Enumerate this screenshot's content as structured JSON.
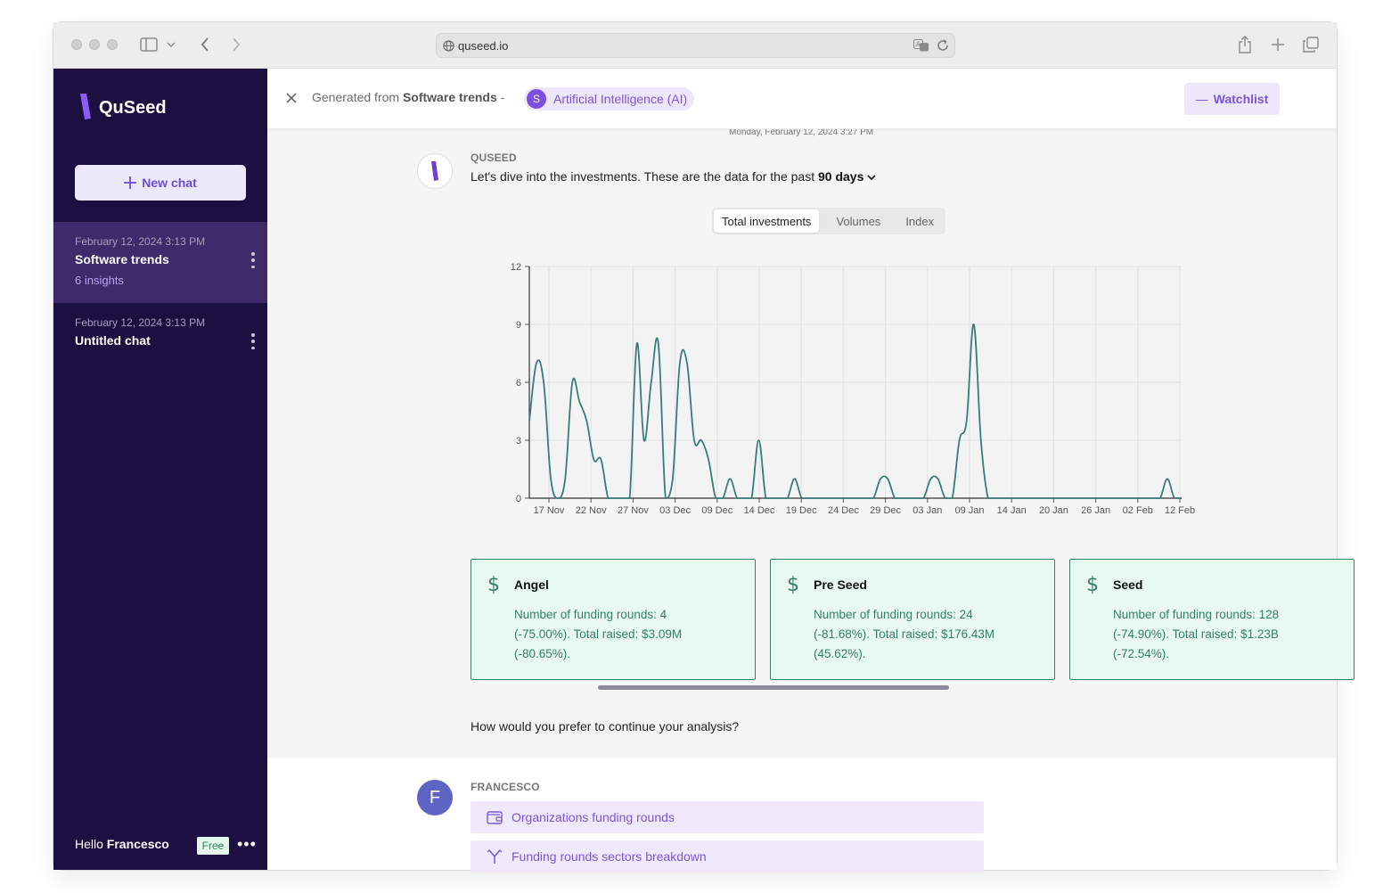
{
  "browser": {
    "url": "quseed.io"
  },
  "sidebar": {
    "brand": "QuSeed",
    "new_chat": "New chat",
    "chats": [
      {
        "date": "February 12, 2024 3:13 PM",
        "title": "Software trends",
        "subtitle": "6 insights",
        "active": true
      },
      {
        "date": "February 12, 2024 3:13 PM",
        "title": "Untitled chat",
        "subtitle": "",
        "active": false
      }
    ],
    "footer": {
      "greeting": "Hello",
      "user": "Francesco",
      "plan": "Free"
    }
  },
  "header": {
    "generated_from_label": "Generated from",
    "source": "Software trends",
    "separator": "-",
    "topic_initial": "S",
    "topic": "Artificial Intelligence (AI)",
    "watchlist_label": "Watchlist"
  },
  "conversation": {
    "timestamp": "Monday, February 12, 2024 3:27 PM",
    "bot_name": "QUSEED",
    "intro_text": "Let's dive into the investments. These are the data for the past",
    "period": "90 days",
    "tabs": [
      "Total investments",
      "Volumes",
      "Index"
    ],
    "active_tab": "Total investments",
    "cards": [
      {
        "title": "Angel",
        "body": "Number of funding rounds: 4 (-75.00%). Total raised: $3.09M (-80.65%)."
      },
      {
        "title": "Pre Seed",
        "body": "Number of funding rounds: 24 (-81.68%). Total raised: $176.43M (45.62%)."
      },
      {
        "title": "Seed",
        "body": "Number of funding rounds: 128 (-74.90%). Total raised: $1.23B (-72.54%)."
      }
    ],
    "question": "How would you prefer to continue your analysis?",
    "user_name": "FRANCESCO",
    "user_initial": "F",
    "options": [
      "Organizations funding rounds",
      "Funding rounds sectors breakdown"
    ]
  },
  "colors": {
    "sidebar_bg": "#1c1041",
    "accent": "#7c55d6",
    "line": "#3a7c76",
    "card_bg": "#e8f9ef"
  },
  "chart_data": {
    "type": "line",
    "title": "",
    "xlabel": "",
    "ylabel": "",
    "ylim": [
      0,
      12
    ],
    "yticks": [
      0,
      3,
      6,
      9,
      12
    ],
    "xtick_labels": [
      "17 Nov",
      "22 Nov",
      "27 Nov",
      "03 Dec",
      "09 Dec",
      "14 Dec",
      "19 Dec",
      "24 Dec",
      "29 Dec",
      "03 Jan",
      "09 Jan",
      "14 Jan",
      "20 Jan",
      "26 Jan",
      "02 Feb",
      "12 Feb"
    ],
    "grid": true,
    "x": [
      "14 Nov",
      "15 Nov",
      "16 Nov",
      "17 Nov",
      "18 Nov",
      "19 Nov",
      "20 Nov",
      "21 Nov",
      "22 Nov",
      "23 Nov",
      "24 Nov",
      "25 Nov",
      "26 Nov",
      "27 Nov",
      "28 Nov",
      "29 Nov",
      "30 Nov",
      "01 Dec",
      "02 Dec",
      "03 Dec",
      "04 Dec",
      "05 Dec",
      "06 Dec",
      "07 Dec",
      "08 Dec",
      "09 Dec",
      "10 Dec",
      "11 Dec",
      "12 Dec",
      "13 Dec",
      "14 Dec",
      "15 Dec",
      "16 Dec",
      "17 Dec",
      "18 Dec",
      "19 Dec",
      "20 Dec",
      "21 Dec",
      "22 Dec",
      "23 Dec",
      "24 Dec",
      "25 Dec",
      "26 Dec",
      "27 Dec",
      "28 Dec",
      "29 Dec",
      "30 Dec",
      "31 Dec",
      "01 Jan",
      "02 Jan",
      "03 Jan",
      "04 Jan",
      "05 Jan",
      "06 Jan",
      "07 Jan",
      "08 Jan",
      "09 Jan",
      "10 Jan",
      "11 Jan",
      "12 Jan",
      "13 Jan",
      "14 Jan",
      "15 Jan",
      "16 Jan",
      "17 Jan",
      "18 Jan",
      "19 Jan",
      "20 Jan",
      "21 Jan",
      "22 Jan",
      "23 Jan",
      "24 Jan",
      "25 Jan",
      "26 Jan",
      "27 Jan",
      "28 Jan",
      "29 Jan",
      "30 Jan",
      "31 Jan",
      "01 Feb",
      "02 Feb",
      "03 Feb",
      "04 Feb",
      "05 Feb",
      "06 Feb",
      "07 Feb",
      "08 Feb",
      "09 Feb",
      "10 Feb",
      "11 Feb",
      "12 Feb",
      "13 Feb"
    ],
    "series": [
      {
        "values": [
          4,
          7,
          6,
          1,
          0,
          1,
          6,
          5,
          4,
          2,
          2,
          0,
          0,
          0,
          0,
          8,
          3,
          6,
          8,
          0,
          1,
          7,
          7,
          3,
          3,
          2,
          0,
          0,
          1,
          0,
          0,
          0,
          3,
          0,
          0,
          0,
          0,
          1,
          0,
          0,
          0,
          0,
          0,
          0,
          0,
          0,
          0,
          0,
          0,
          1,
          1,
          0,
          0,
          0,
          0,
          0,
          1,
          1,
          0,
          0,
          3,
          4,
          9,
          3,
          0,
          0,
          0,
          0,
          0,
          0,
          0,
          0,
          0,
          0,
          0,
          0,
          0,
          0,
          0,
          0,
          0,
          0,
          0,
          0,
          0,
          0,
          0,
          0,
          0,
          1,
          0,
          0
        ]
      }
    ]
  }
}
